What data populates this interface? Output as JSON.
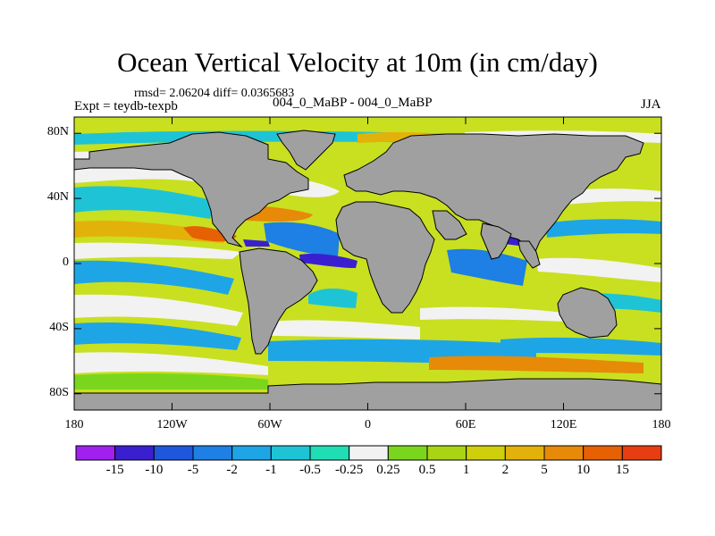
{
  "title": "Ocean Vertical Velocity at 10m (in cm/day)",
  "stats": "rmsd= 2.06204 diff= 0.0365683",
  "left_label": "Expt = teydb-texpb",
  "center_label": "004_0_MaBP - 004_0_MaBP",
  "right_label": "JJA",
  "map": {
    "projection": "cylindrical equidistant",
    "lon_range": [
      -180,
      180
    ],
    "lat_range": [
      -90,
      90
    ],
    "land_color": "#a0a0a0"
  },
  "y_ticks": [
    {
      "label": "80N",
      "lat": 80
    },
    {
      "label": "40N",
      "lat": 40
    },
    {
      "label": "0",
      "lat": 0
    },
    {
      "label": "40S",
      "lat": -40
    },
    {
      "label": "80S",
      "lat": -80
    }
  ],
  "x_ticks": [
    {
      "label": "180",
      "lon": -180
    },
    {
      "label": "120W",
      "lon": -120
    },
    {
      "label": "60W",
      "lon": -60
    },
    {
      "label": "0",
      "lon": 0
    },
    {
      "label": "60E",
      "lon": 60
    },
    {
      "label": "120E",
      "lon": 120
    },
    {
      "label": "180",
      "lon": 180
    }
  ],
  "colorbar": {
    "labels": [
      "-15",
      "-10",
      "-5",
      "-2",
      "-1",
      "-0.5",
      "-0.25",
      "0.25",
      "0.5",
      "1",
      "2",
      "5",
      "10",
      "15"
    ],
    "colors": [
      "#a020f0",
      "#3a1fd0",
      "#1f57dc",
      "#1e7fe4",
      "#1ea5e6",
      "#1ec4d6",
      "#20ddb4",
      "#f2f2f2",
      "#7ad61c",
      "#a8d414",
      "#cfcf0c",
      "#e3b20a",
      "#e68a08",
      "#e66004",
      "#e63e10"
    ]
  }
}
